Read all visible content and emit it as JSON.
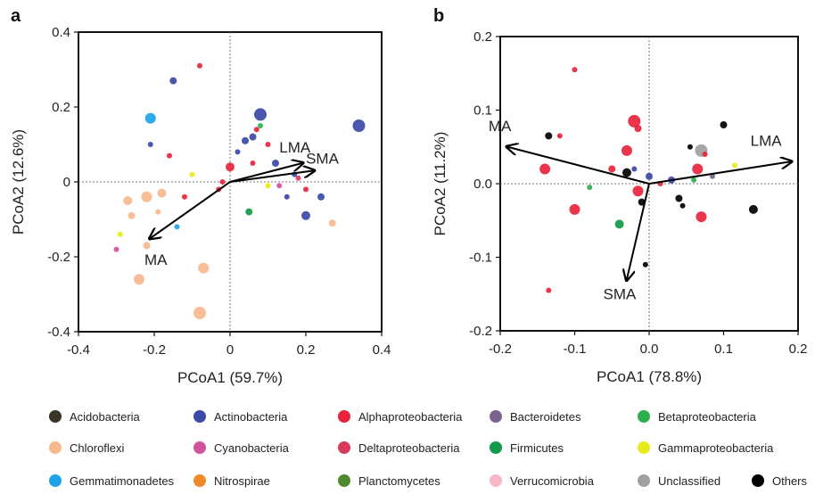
{
  "chart_data": [
    {
      "type": "scatter",
      "panel_label": "a",
      "xlabel": "PCoA1 (59.7%)",
      "ylabel": "PCoA2 (12.6%)",
      "xlim": [
        -0.4,
        0.4
      ],
      "ylim": [
        -0.4,
        0.4
      ],
      "xticks": [
        "-0.4",
        "-0.2",
        "0",
        "0.2",
        "0.4"
      ],
      "yticks": [
        "0.4",
        "0.2",
        "0",
        "-0.2",
        "-0.4"
      ],
      "reference_lines": {
        "x": 0,
        "y": 0,
        "style": "dotted"
      },
      "vectors": [
        {
          "label": "LMA",
          "x": 0.19,
          "y": 0.05
        },
        {
          "label": "SMA",
          "x": 0.22,
          "y": 0.03
        },
        {
          "label": "MA",
          "x": -0.21,
          "y": -0.15
        }
      ],
      "points": [
        {
          "x": -0.08,
          "y": 0.31,
          "size": 3,
          "group": "Alphaproteobacteria"
        },
        {
          "x": -0.15,
          "y": 0.27,
          "size": 4,
          "group": "Actinobacteria"
        },
        {
          "x": 0.08,
          "y": 0.18,
          "size": 7,
          "group": "Actinobacteria"
        },
        {
          "x": 0.34,
          "y": 0.15,
          "size": 7,
          "group": "Actinobacteria"
        },
        {
          "x": -0.21,
          "y": 0.17,
          "size": 6,
          "group": "Gemmatimonadetes"
        },
        {
          "x": -0.21,
          "y": 0.1,
          "size": 3,
          "group": "Actinobacteria"
        },
        {
          "x": 0.07,
          "y": 0.14,
          "size": 3,
          "group": "Alphaproteobacteria"
        },
        {
          "x": 0.08,
          "y": 0.15,
          "size": 3,
          "group": "Betaproteobacteria"
        },
        {
          "x": 0.06,
          "y": 0.12,
          "size": 4,
          "group": "Actinobacteria"
        },
        {
          "x": 0.04,
          "y": 0.11,
          "size": 4,
          "group": "Actinobacteria"
        },
        {
          "x": 0.02,
          "y": 0.08,
          "size": 3,
          "group": "Actinobacteria"
        },
        {
          "x": 0.1,
          "y": 0.1,
          "size": 3,
          "group": "Alphaproteobacteria"
        },
        {
          "x": 0.12,
          "y": 0.05,
          "size": 4,
          "group": "Actinobacteria"
        },
        {
          "x": 0.0,
          "y": 0.04,
          "size": 5,
          "group": "Alphaproteobacteria"
        },
        {
          "x": 0.06,
          "y": 0.05,
          "size": 3,
          "group": "Alphaproteobacteria"
        },
        {
          "x": 0.17,
          "y": 0.02,
          "size": 3,
          "group": "Actinobacteria"
        },
        {
          "x": 0.24,
          "y": -0.04,
          "size": 4,
          "group": "Actinobacteria"
        },
        {
          "x": 0.2,
          "y": -0.02,
          "size": 3,
          "group": "Alphaproteobacteria"
        },
        {
          "x": 0.15,
          "y": -0.04,
          "size": 3,
          "group": "Actinobacteria"
        },
        {
          "x": 0.1,
          "y": -0.01,
          "size": 3,
          "group": "Gammaproteobacteria"
        },
        {
          "x": 0.2,
          "y": -0.09,
          "size": 5,
          "group": "Actinobacteria"
        },
        {
          "x": 0.27,
          "y": -0.11,
          "size": 4,
          "group": "Chloroflexi"
        },
        {
          "x": 0.05,
          "y": -0.08,
          "size": 4,
          "group": "Firmicutes"
        },
        {
          "x": -0.02,
          "y": 0.0,
          "size": 3,
          "group": "Alphaproteobacteria"
        },
        {
          "x": -0.03,
          "y": -0.02,
          "size": 3,
          "group": "Alphaproteobacteria"
        },
        {
          "x": -0.1,
          "y": 0.02,
          "size": 3,
          "group": "Gammaproteobacteria"
        },
        {
          "x": -0.18,
          "y": -0.03,
          "size": 5,
          "group": "Chloroflexi"
        },
        {
          "x": -0.22,
          "y": -0.04,
          "size": 6,
          "group": "Chloroflexi"
        },
        {
          "x": -0.27,
          "y": -0.05,
          "size": 5,
          "group": "Chloroflexi"
        },
        {
          "x": -0.26,
          "y": -0.09,
          "size": 4,
          "group": "Chloroflexi"
        },
        {
          "x": -0.29,
          "y": -0.14,
          "size": 3,
          "group": "Gammaproteobacteria"
        },
        {
          "x": -0.3,
          "y": -0.18,
          "size": 3,
          "group": "Cyanobacteria"
        },
        {
          "x": -0.22,
          "y": -0.17,
          "size": 4,
          "group": "Chloroflexi"
        },
        {
          "x": -0.19,
          "y": -0.08,
          "size": 3,
          "group": "Chloroflexi"
        },
        {
          "x": -0.14,
          "y": -0.12,
          "size": 3,
          "group": "Gemmatimonadetes"
        },
        {
          "x": -0.24,
          "y": -0.26,
          "size": 6,
          "group": "Chloroflexi"
        },
        {
          "x": -0.07,
          "y": -0.23,
          "size": 6,
          "group": "Chloroflexi"
        },
        {
          "x": -0.08,
          "y": -0.35,
          "size": 7,
          "group": "Chloroflexi"
        },
        {
          "x": 0.13,
          "y": -0.01,
          "size": 3,
          "group": "Cyanobacteria"
        },
        {
          "x": 0.18,
          "y": 0.01,
          "size": 3,
          "group": "Deltaproteobacteria"
        },
        {
          "x": -0.12,
          "y": -0.04,
          "size": 3,
          "group": "Alphaproteobacteria"
        },
        {
          "x": -0.16,
          "y": 0.07,
          "size": 3,
          "group": "Alphaproteobacteria"
        }
      ]
    },
    {
      "type": "scatter",
      "panel_label": "b",
      "xlabel": "PCoA1 (78.8%)",
      "ylabel": "PCoA2 (11.2%)",
      "xlim": [
        -0.2,
        0.2
      ],
      "ylim": [
        -0.2,
        0.2
      ],
      "xticks": [
        "-0.2",
        "-0.1",
        "0.0",
        "0.1",
        "0.2"
      ],
      "yticks": [
        "0.2",
        "0.1",
        "0.0",
        "-0.1",
        "-0.2"
      ],
      "reference_lines": {
        "x": 0,
        "y": 0,
        "style": "dotted"
      },
      "vectors": [
        {
          "label": "LMA",
          "x": 0.19,
          "y": 0.03
        },
        {
          "label": "MA",
          "x": -0.19,
          "y": 0.05
        },
        {
          "label": "SMA",
          "x": -0.03,
          "y": -0.13
        }
      ],
      "points": [
        {
          "x": -0.1,
          "y": 0.155,
          "size": 3,
          "group": "Alphaproteobacteria"
        },
        {
          "x": -0.02,
          "y": 0.085,
          "size": 7,
          "group": "Alphaproteobacteria"
        },
        {
          "x": -0.015,
          "y": 0.075,
          "size": 4,
          "group": "Alphaproteobacteria"
        },
        {
          "x": -0.135,
          "y": 0.065,
          "size": 4,
          "group": "Others"
        },
        {
          "x": -0.12,
          "y": 0.065,
          "size": 3,
          "group": "Alphaproteobacteria"
        },
        {
          "x": -0.14,
          "y": 0.02,
          "size": 6,
          "group": "Alphaproteobacteria"
        },
        {
          "x": -0.03,
          "y": 0.045,
          "size": 6,
          "group": "Alphaproteobacteria"
        },
        {
          "x": 0.07,
          "y": 0.045,
          "size": 7,
          "group": "Unclassified"
        },
        {
          "x": 0.1,
          "y": 0.08,
          "size": 4,
          "group": "Others"
        },
        {
          "x": 0.055,
          "y": 0.05,
          "size": 3,
          "group": "Others"
        },
        {
          "x": -0.05,
          "y": 0.02,
          "size": 4,
          "group": "Alphaproteobacteria"
        },
        {
          "x": -0.03,
          "y": 0.015,
          "size": 5,
          "group": "Others"
        },
        {
          "x": -0.02,
          "y": 0.02,
          "size": 3,
          "group": "Actinobacteria"
        },
        {
          "x": 0.0,
          "y": 0.01,
          "size": 4,
          "group": "Actinobacteria"
        },
        {
          "x": 0.03,
          "y": 0.005,
          "size": 4,
          "group": "Actinobacteria"
        },
        {
          "x": 0.065,
          "y": 0.02,
          "size": 6,
          "group": "Alphaproteobacteria"
        },
        {
          "x": 0.075,
          "y": 0.04,
          "size": 3,
          "group": "Alphaproteobacteria"
        },
        {
          "x": 0.115,
          "y": 0.025,
          "size": 3,
          "group": "Gammaproteobacteria"
        },
        {
          "x": -0.08,
          "y": -0.005,
          "size": 3,
          "group": "Betaproteobacteria"
        },
        {
          "x": -0.1,
          "y": -0.035,
          "size": 6,
          "group": "Alphaproteobacteria"
        },
        {
          "x": -0.04,
          "y": -0.055,
          "size": 5,
          "group": "Firmicutes"
        },
        {
          "x": -0.015,
          "y": -0.01,
          "size": 6,
          "group": "Alphaproteobacteria"
        },
        {
          "x": -0.01,
          "y": -0.025,
          "size": 4,
          "group": "Others"
        },
        {
          "x": 0.04,
          "y": -0.02,
          "size": 4,
          "group": "Others"
        },
        {
          "x": 0.045,
          "y": -0.03,
          "size": 3,
          "group": "Others"
        },
        {
          "x": 0.07,
          "y": -0.045,
          "size": 6,
          "group": "Alphaproteobacteria"
        },
        {
          "x": 0.14,
          "y": -0.035,
          "size": 5,
          "group": "Others"
        },
        {
          "x": -0.005,
          "y": -0.11,
          "size": 3,
          "group": "Others"
        },
        {
          "x": -0.135,
          "y": -0.145,
          "size": 3,
          "group": "Alphaproteobacteria"
        },
        {
          "x": 0.06,
          "y": 0.005,
          "size": 3,
          "group": "Betaproteobacteria"
        },
        {
          "x": 0.085,
          "y": 0.01,
          "size": 3,
          "group": "Bacteroidetes"
        },
        {
          "x": 0.015,
          "y": 0.0,
          "size": 3,
          "group": "Alphaproteobacteria"
        }
      ]
    }
  ],
  "legend": [
    {
      "label": "Acidobacteria",
      "color": "#3b3526"
    },
    {
      "label": "Actinobacteria",
      "color": "#3b49a8"
    },
    {
      "label": "Alphaproteobacteria",
      "color": "#e8243c"
    },
    {
      "label": "Bacteroidetes",
      "color": "#7b6391"
    },
    {
      "label": "Betaproteobacteria",
      "color": "#2fae4e"
    },
    {
      "label": "Chloroflexi",
      "color": "#f6b98e"
    },
    {
      "label": "Cyanobacteria",
      "color": "#d1529b"
    },
    {
      "label": "Deltaproteobacteria",
      "color": "#d83a5a"
    },
    {
      "label": "Firmicutes",
      "color": "#129a48"
    },
    {
      "label": "Gammaproteobacteria",
      "color": "#e6ea1a"
    },
    {
      "label": "Gemmatimonadetes",
      "color": "#1ea3e6"
    },
    {
      "label": "Nitrospirae",
      "color": "#f08a28"
    },
    {
      "label": "Planctomycetes",
      "color": "#4f8a2f"
    },
    {
      "label": "Verrucomicrobia",
      "color": "#f7b7c6"
    },
    {
      "label": "Unclassified",
      "color": "#a0a0a0"
    },
    {
      "label": "Others",
      "color": "#000000"
    }
  ]
}
